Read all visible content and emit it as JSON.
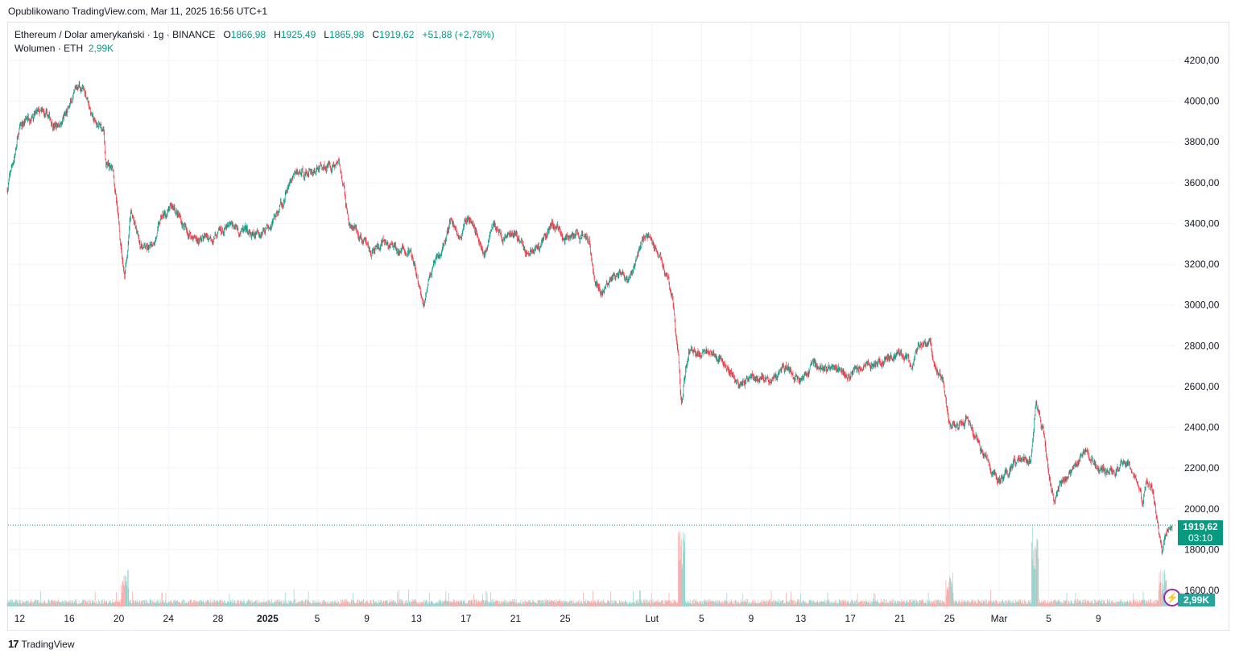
{
  "published": "Opublikowano TradingView.com, Mar 11, 2025 16:56 UTC+1",
  "legend": {
    "symbol": "Ethereum / Dolar amerykański · 1g · BINANCE",
    "o_label": "O",
    "o": "1866,98",
    "h_label": "H",
    "h": "1925,49",
    "l_label": "L",
    "l": "1865,98",
    "c_label": "C",
    "c": "1919,62",
    "change": "+51,88 (+2,78%)",
    "volume_label": "Wolumen · ETH",
    "volume": "2,99K"
  },
  "price_label": {
    "price": "1919,62",
    "countdown": "03:10"
  },
  "volume_label": "2,99K",
  "brand": "TradingView",
  "colors": {
    "up": "#089981",
    "down": "#f23645",
    "up_vol": "#92d2cc",
    "down_vol": "#f7a9a7"
  },
  "chart_data": {
    "type": "candlestick",
    "title": "Ethereum / Dolar amerykański · 1g · BINANCE",
    "ylim": [
      1550,
      4250
    ],
    "y_ticks": [
      "1600,00",
      "1800,00",
      "2000,00",
      "2200,00",
      "2400,00",
      "2600,00",
      "2800,00",
      "3000,00",
      "3200,00",
      "3400,00",
      "3600,00",
      "3800,00",
      "4000,00",
      "4200,00"
    ],
    "y_tick_values": [
      1600,
      1800,
      2000,
      2200,
      2400,
      2600,
      2800,
      3000,
      3200,
      3400,
      3600,
      3800,
      4000,
      4200
    ],
    "x_ticks": [
      {
        "label": "12",
        "day": 1
      },
      {
        "label": "16",
        "day": 5
      },
      {
        "label": "20",
        "day": 9
      },
      {
        "label": "24",
        "day": 13
      },
      {
        "label": "28",
        "day": 17
      },
      {
        "label": "2025",
        "day": 21
      },
      {
        "label": "5",
        "day": 25
      },
      {
        "label": "9",
        "day": 29
      },
      {
        "label": "13",
        "day": 33
      },
      {
        "label": "17",
        "day": 37
      },
      {
        "label": "21",
        "day": 41
      },
      {
        "label": "25",
        "day": 45
      },
      {
        "label": "Lut",
        "day": 52
      },
      {
        "label": "5",
        "day": 56
      },
      {
        "label": "9",
        "day": 60
      },
      {
        "label": "13",
        "day": 64
      },
      {
        "label": "17",
        "day": 68
      },
      {
        "label": "21",
        "day": 72
      },
      {
        "label": "25",
        "day": 76
      },
      {
        "label": "Mar",
        "day": 80
      },
      {
        "label": "5",
        "day": 84
      },
      {
        "label": "9",
        "day": 88
      }
    ],
    "x_unit": "days since Dec 11 2024",
    "last_price": 1919.62,
    "price_path": [
      [
        0,
        3560
      ],
      [
        0.5,
        3700
      ],
      [
        1,
        3850
      ],
      [
        2,
        3950
      ],
      [
        3,
        3920
      ],
      [
        4,
        3880
      ],
      [
        5,
        3950
      ],
      [
        5.8,
        4080
      ],
      [
        6.5,
        4020
      ],
      [
        7,
        3900
      ],
      [
        7.8,
        3850
      ],
      [
        8,
        3680
      ],
      [
        8.6,
        3650
      ],
      [
        9,
        3400
      ],
      [
        9.5,
        3150
      ],
      [
        10,
        3450
      ],
      [
        10.7,
        3300
      ],
      [
        11.5,
        3260
      ],
      [
        12.5,
        3420
      ],
      [
        13.5,
        3480
      ],
      [
        14.5,
        3360
      ],
      [
        15.5,
        3320
      ],
      [
        17,
        3350
      ],
      [
        18.5,
        3380
      ],
      [
        20,
        3320
      ],
      [
        21,
        3400
      ],
      [
        22,
        3470
      ],
      [
        23,
        3620
      ],
      [
        24.5,
        3660
      ],
      [
        26,
        3690
      ],
      [
        26.8,
        3700
      ],
      [
        27.6,
        3400
      ],
      [
        28.5,
        3320
      ],
      [
        29.5,
        3260
      ],
      [
        30.5,
        3290
      ],
      [
        31.5,
        3270
      ],
      [
        32.5,
        3260
      ],
      [
        33.2,
        3100
      ],
      [
        33.6,
        2980
      ],
      [
        34,
        3150
      ],
      [
        35,
        3230
      ],
      [
        35.8,
        3420
      ],
      [
        36.5,
        3330
      ],
      [
        37.5,
        3460
      ],
      [
        38.5,
        3250
      ],
      [
        39.3,
        3400
      ],
      [
        40,
        3330
      ],
      [
        41,
        3350
      ],
      [
        42,
        3250
      ],
      [
        43,
        3300
      ],
      [
        44,
        3410
      ],
      [
        45,
        3340
      ],
      [
        46,
        3330
      ],
      [
        47,
        3340
      ],
      [
        47.5,
        3100
      ],
      [
        48.2,
        3080
      ],
      [
        49,
        3150
      ],
      [
        50,
        3100
      ],
      [
        51,
        3250
      ],
      [
        51.6,
        3350
      ],
      [
        52.2,
        3300
      ],
      [
        53,
        3200
      ],
      [
        53.7,
        3020
      ],
      [
        54.2,
        2700
      ],
      [
        54.4,
        2500
      ],
      [
        55,
        2800
      ],
      [
        56,
        2760
      ],
      [
        57,
        2780
      ],
      [
        58,
        2700
      ],
      [
        59,
        2620
      ],
      [
        60,
        2620
      ],
      [
        61,
        2650
      ],
      [
        62,
        2620
      ],
      [
        63,
        2680
      ],
      [
        64,
        2640
      ],
      [
        65,
        2700
      ],
      [
        66,
        2690
      ],
      [
        67,
        2700
      ],
      [
        68,
        2680
      ],
      [
        69,
        2720
      ],
      [
        70,
        2700
      ],
      [
        71,
        2730
      ],
      [
        72,
        2760
      ],
      [
        73,
        2700
      ],
      [
        73.6,
        2780
      ],
      [
        74.5,
        2800
      ],
      [
        75,
        2700
      ],
      [
        75.5,
        2640
      ],
      [
        76,
        2430
      ],
      [
        76.6,
        2380
      ],
      [
        77.5,
        2450
      ],
      [
        78.5,
        2300
      ],
      [
        79.5,
        2180
      ],
      [
        80,
        2120
      ],
      [
        81,
        2200
      ],
      [
        82,
        2250
      ],
      [
        82.6,
        2230
      ],
      [
        83,
        2520
      ],
      [
        83.6,
        2400
      ],
      [
        84,
        2200
      ],
      [
        84.5,
        2050
      ],
      [
        85,
        2100
      ],
      [
        86,
        2200
      ],
      [
        87,
        2290
      ],
      [
        88,
        2200
      ],
      [
        89,
        2180
      ],
      [
        90,
        2210
      ],
      [
        91,
        2180
      ],
      [
        91.6,
        2030
      ],
      [
        92,
        2130
      ],
      [
        92.4,
        2100
      ],
      [
        92.8,
        1950
      ],
      [
        93.2,
        1790
      ],
      [
        93.6,
        1880
      ],
      [
        94,
        1920
      ]
    ],
    "volume_spikes": [
      [
        9.5,
        "high"
      ],
      [
        54.4,
        "very high"
      ],
      [
        76,
        "high"
      ],
      [
        82.9,
        "very high"
      ],
      [
        93.2,
        "high"
      ]
    ]
  }
}
